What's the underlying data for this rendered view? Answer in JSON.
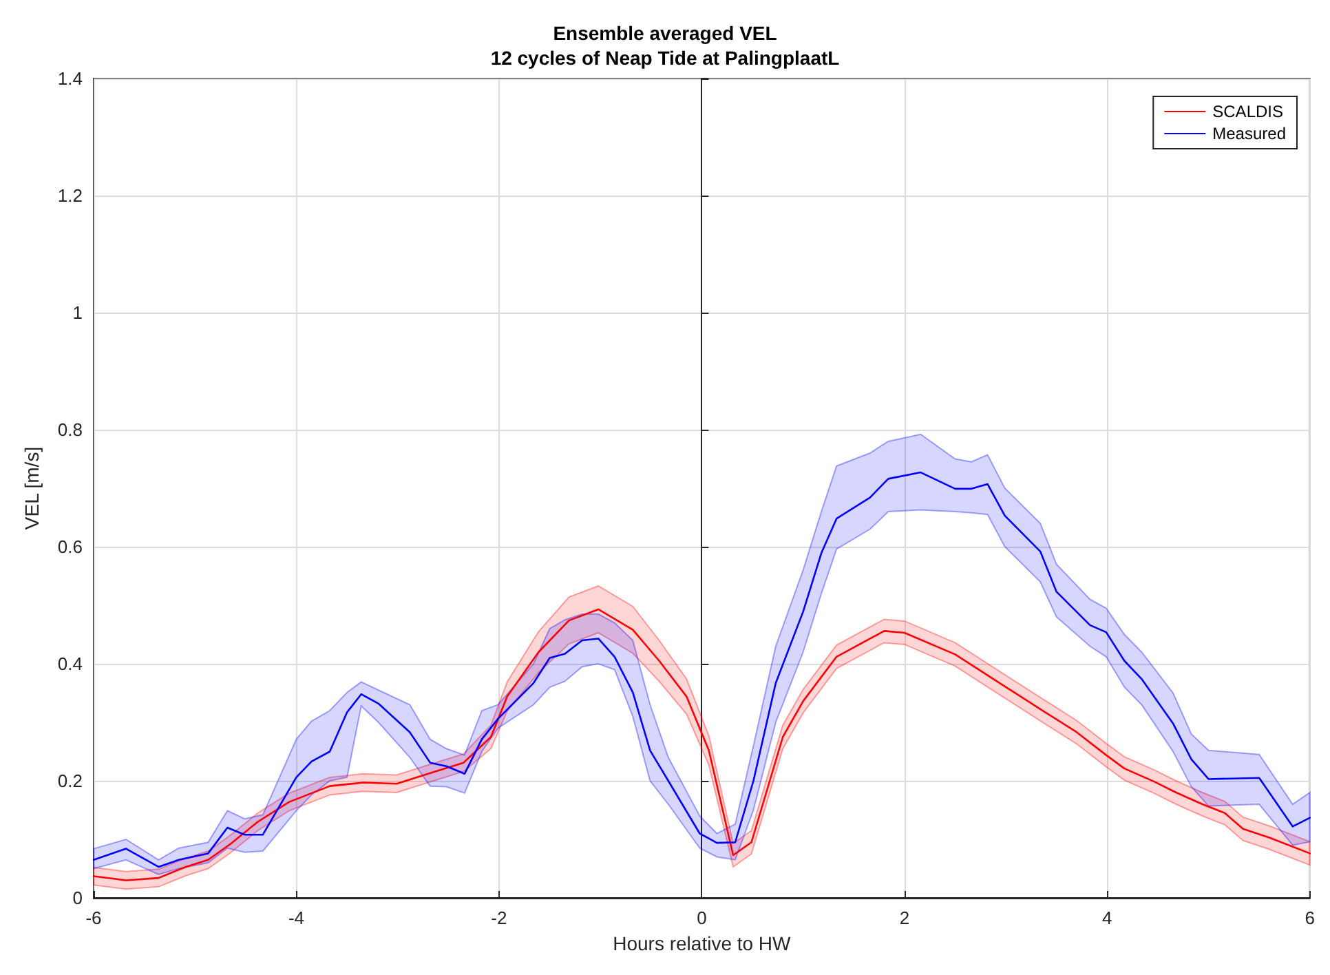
{
  "chart_data": {
    "type": "line",
    "title": "Ensemble averaged VEL",
    "subtitle": "12 cycles of Neap Tide at PalingplaatL",
    "xlabel": "Hours relative to HW",
    "ylabel": "VEL [m/s]",
    "xlim": [
      -6,
      6
    ],
    "xticks": [
      -6,
      -4,
      -2,
      0,
      2,
      4,
      6
    ],
    "ylim": [
      0,
      1.4
    ],
    "yticks": [
      0,
      0.2,
      0.4,
      0.6,
      0.8,
      1,
      1.2,
      1.4
    ],
    "grid": true,
    "legend": "top right",
    "marker": "none",
    "line_style": "solid",
    "series": [
      {
        "name": "SCALDIS",
        "color": "#ff0000",
        "x": [
          -6,
          -5.68,
          -5.36,
          -5.09,
          -4.87,
          -4.65,
          -4.38,
          -4.07,
          -3.67,
          -3.34,
          -3.01,
          -2.7,
          -2.35,
          -2.08,
          -1.92,
          -1.61,
          -1.31,
          -1.02,
          -0.68,
          -0.42,
          -0.15,
          0.07,
          0.31,
          0.49,
          0.8,
          1.0,
          1.33,
          1.8,
          2.0,
          2.5,
          2.94,
          3.39,
          3.7,
          3.99,
          4.17,
          4.46,
          4.68,
          4.94,
          5.16,
          5.34,
          5.6,
          6
        ],
        "values": [
          0.037,
          0.03,
          0.034,
          0.053,
          0.065,
          0.092,
          0.13,
          0.164,
          0.191,
          0.197,
          0.195,
          0.212,
          0.231,
          0.275,
          0.344,
          0.42,
          0.474,
          0.493,
          0.458,
          0.405,
          0.344,
          0.252,
          0.073,
          0.095,
          0.275,
          0.336,
          0.412,
          0.456,
          0.453,
          0.416,
          0.367,
          0.317,
          0.283,
          0.244,
          0.221,
          0.199,
          0.18,
          0.16,
          0.145,
          0.118,
          0.103,
          0.076
        ],
        "lower": [
          0.022,
          0.015,
          0.019,
          0.038,
          0.05,
          0.077,
          0.115,
          0.149,
          0.176,
          0.182,
          0.18,
          0.197,
          0.216,
          0.255,
          0.319,
          0.385,
          0.434,
          0.453,
          0.418,
          0.37,
          0.314,
          0.227,
          0.053,
          0.075,
          0.255,
          0.316,
          0.392,
          0.436,
          0.433,
          0.396,
          0.347,
          0.297,
          0.263,
          0.224,
          0.201,
          0.179,
          0.16,
          0.14,
          0.125,
          0.098,
          0.083,
          0.056
        ],
        "upper": [
          0.052,
          0.045,
          0.049,
          0.068,
          0.08,
          0.107,
          0.145,
          0.179,
          0.206,
          0.212,
          0.21,
          0.227,
          0.246,
          0.295,
          0.369,
          0.455,
          0.514,
          0.533,
          0.498,
          0.44,
          0.374,
          0.277,
          0.093,
          0.115,
          0.295,
          0.356,
          0.432,
          0.476,
          0.473,
          0.436,
          0.387,
          0.337,
          0.303,
          0.264,
          0.241,
          0.219,
          0.2,
          0.18,
          0.165,
          0.138,
          0.123,
          0.096
        ]
      },
      {
        "name": "Measured",
        "color": "#0000ff",
        "x": [
          -6,
          -5.68,
          -5.36,
          -5.16,
          -4.87,
          -4.68,
          -4.51,
          -4.33,
          -4.0,
          -3.85,
          -3.67,
          -3.5,
          -3.36,
          -3.19,
          -2.88,
          -2.68,
          -2.52,
          -2.34,
          -2.17,
          -2.01,
          -1.66,
          -1.5,
          -1.35,
          -1.18,
          -1.02,
          -0.86,
          -0.68,
          -0.51,
          -0.33,
          -0.02,
          0.15,
          0.33,
          0.51,
          0.73,
          1.0,
          1.18,
          1.33,
          1.66,
          1.84,
          2.16,
          2.5,
          2.66,
          2.82,
          2.99,
          3.34,
          3.5,
          3.83,
          3.99,
          4.17,
          4.34,
          4.65,
          4.83,
          5.0,
          5.5,
          5.83,
          6
        ],
        "values": [
          0.065,
          0.084,
          0.053,
          0.065,
          0.076,
          0.12,
          0.108,
          0.108,
          0.206,
          0.233,
          0.25,
          0.317,
          0.348,
          0.332,
          0.283,
          0.231,
          0.225,
          0.212,
          0.271,
          0.306,
          0.367,
          0.41,
          0.417,
          0.44,
          0.443,
          0.412,
          0.351,
          0.252,
          0.2,
          0.11,
          0.094,
          0.095,
          0.2,
          0.367,
          0.489,
          0.589,
          0.648,
          0.684,
          0.716,
          0.727,
          0.699,
          0.699,
          0.707,
          0.653,
          0.592,
          0.523,
          0.466,
          0.454,
          0.405,
          0.374,
          0.298,
          0.237,
          0.203,
          0.205,
          0.122,
          0.137
        ],
        "lower": [
          0.05,
          0.065,
          0.04,
          0.05,
          0.06,
          0.085,
          0.078,
          0.08,
          0.149,
          0.176,
          0.2,
          0.206,
          0.328,
          0.3,
          0.24,
          0.191,
          0.19,
          0.179,
          0.25,
          0.29,
          0.33,
          0.36,
          0.37,
          0.395,
          0.4,
          0.39,
          0.31,
          0.2,
          0.16,
          0.085,
          0.07,
          0.065,
          0.15,
          0.3,
          0.42,
          0.52,
          0.596,
          0.63,
          0.66,
          0.663,
          0.66,
          0.658,
          0.655,
          0.6,
          0.54,
          0.48,
          0.43,
          0.412,
          0.36,
          0.33,
          0.25,
          0.19,
          0.157,
          0.16,
          0.09,
          0.096
        ],
        "upper": [
          0.084,
          0.1,
          0.065,
          0.085,
          0.095,
          0.149,
          0.135,
          0.142,
          0.271,
          0.302,
          0.32,
          0.351,
          0.369,
          0.355,
          0.33,
          0.271,
          0.255,
          0.244,
          0.32,
          0.33,
          0.4,
          0.46,
          0.475,
          0.485,
          0.485,
          0.47,
          0.44,
          0.33,
          0.24,
          0.14,
          0.11,
          0.126,
          0.26,
          0.43,
          0.56,
          0.66,
          0.738,
          0.76,
          0.78,
          0.792,
          0.75,
          0.745,
          0.757,
          0.7,
          0.64,
          0.57,
          0.51,
          0.495,
          0.45,
          0.42,
          0.35,
          0.28,
          0.252,
          0.245,
          0.16,
          0.18
        ]
      }
    ]
  }
}
